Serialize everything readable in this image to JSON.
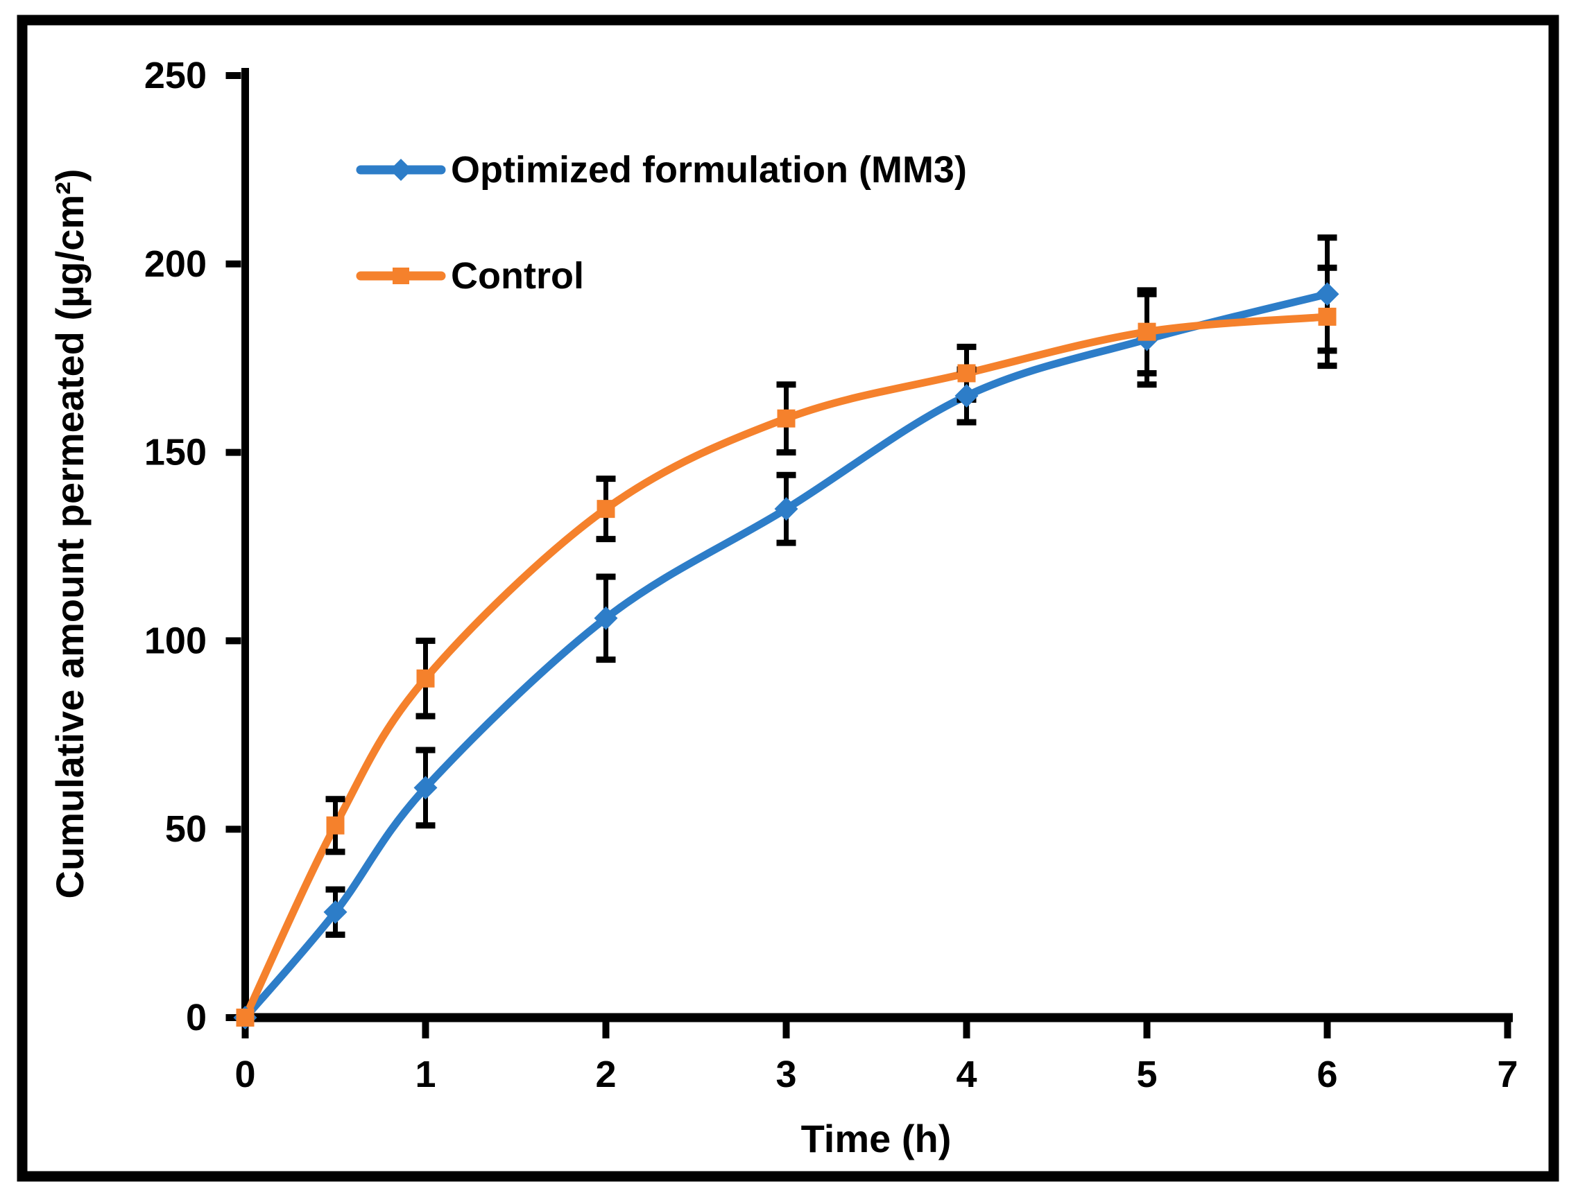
{
  "figure": {
    "background": "#ffffff",
    "border_color": "#000000"
  },
  "chart_data": {
    "type": "line",
    "title": "",
    "xlabel": "Time (h)",
    "ylabel": "Cumulative amount permeated (µg/cm²)",
    "x": [
      0,
      0.5,
      1,
      2,
      3,
      4,
      5,
      6
    ],
    "x_ticks": [
      0,
      1,
      2,
      3,
      4,
      5,
      6,
      7
    ],
    "y_ticks": [
      0,
      50,
      100,
      150,
      200,
      250
    ],
    "xlim": [
      0,
      7
    ],
    "ylim": [
      0,
      250
    ],
    "grid": false,
    "legend_position": "inside-top-left",
    "axis_color": "#000000",
    "error_bar_color": "#000000",
    "series": [
      {
        "name": "Optimized formulation (MM3)",
        "color": "#2D7DC8",
        "marker": "diamond",
        "values": [
          0,
          28,
          61,
          106,
          135,
          165,
          180,
          192
        ],
        "errors": [
          0,
          6,
          10,
          11,
          9,
          7,
          12,
          15
        ]
      },
      {
        "name": "Control",
        "color": "#F5812C",
        "marker": "square",
        "values": [
          0,
          51,
          90,
          135,
          159,
          171,
          182,
          186
        ],
        "errors": [
          0,
          7,
          10,
          8,
          9,
          7,
          11,
          13
        ]
      }
    ]
  }
}
